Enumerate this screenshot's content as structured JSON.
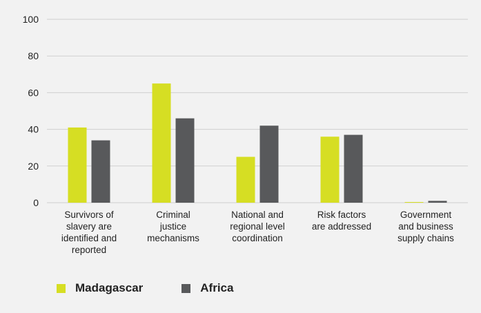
{
  "chart_data": {
    "type": "bar",
    "categories": [
      [
        "Survivors of",
        "slavery are",
        "identified and",
        "reported"
      ],
      [
        "Criminal",
        "justice",
        "mechanisms"
      ],
      [
        "National and",
        "regional level",
        "coordination"
      ],
      [
        "Risk factors",
        "are addressed"
      ],
      [
        "Government",
        "and business",
        "supply chains"
      ]
    ],
    "series": [
      {
        "name": "Madagascar",
        "color": "#d6de23",
        "values": [
          41,
          65,
          25,
          36,
          0
        ]
      },
      {
        "name": "Africa",
        "color": "#58595b",
        "values": [
          34,
          46,
          42,
          37,
          1
        ]
      }
    ],
    "ylim": [
      0,
      100
    ],
    "yticks": [
      "0",
      "20",
      "40",
      "60",
      "80",
      "100"
    ],
    "grid": true,
    "legend_position": "bottom-left"
  },
  "legend": {
    "items": [
      {
        "label": "Madagascar",
        "color": "#d6de23",
        "icon": "square-swatch"
      },
      {
        "label": "Africa",
        "color": "#58595b",
        "icon": "square-swatch"
      }
    ]
  }
}
